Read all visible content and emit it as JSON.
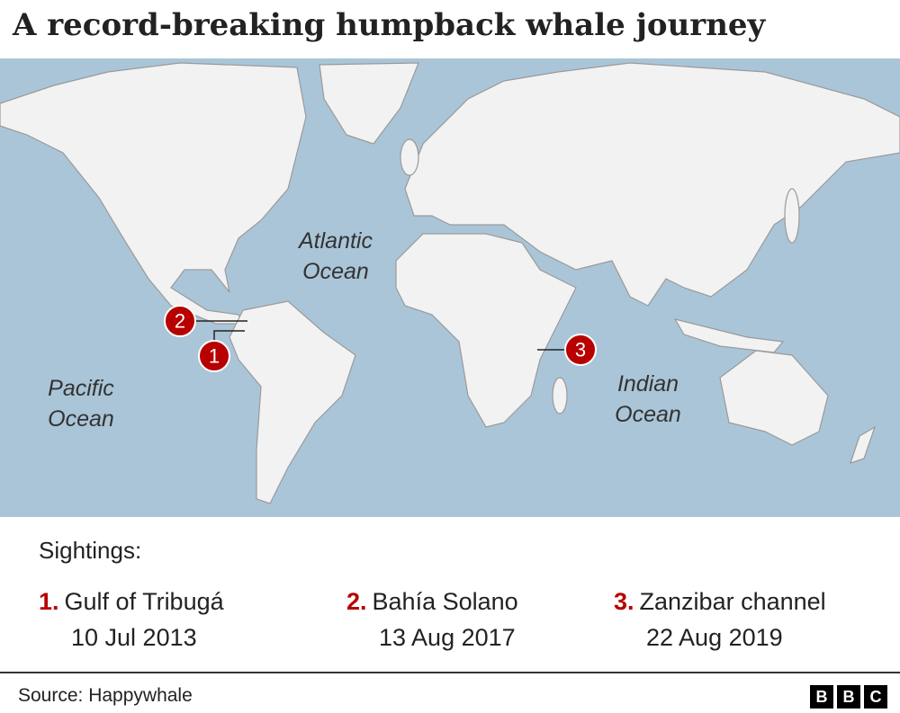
{
  "title": "A record-breaking humpback whale journey",
  "map": {
    "ocean_labels": [
      {
        "lines": [
          "Atlantic",
          "Ocean"
        ]
      },
      {
        "lines": [
          "Pacific",
          "Ocean"
        ]
      },
      {
        "lines": [
          "Indian",
          "Ocean"
        ]
      }
    ],
    "markers": [
      "1",
      "2",
      "3"
    ]
  },
  "legend": {
    "heading": "Sightings:",
    "items": [
      {
        "number": "1.",
        "place": "Gulf of Tribugá",
        "date": "10 Jul 2013"
      },
      {
        "number": "2.",
        "place": "Bahía Solano",
        "date": "13 Aug 2017"
      },
      {
        "number": "3.",
        "place": "Zanzibar channel",
        "date": "22 Aug 2019"
      }
    ]
  },
  "footer": {
    "source": "Source: Happywhale",
    "logo": [
      "B",
      "B",
      "C"
    ]
  }
}
